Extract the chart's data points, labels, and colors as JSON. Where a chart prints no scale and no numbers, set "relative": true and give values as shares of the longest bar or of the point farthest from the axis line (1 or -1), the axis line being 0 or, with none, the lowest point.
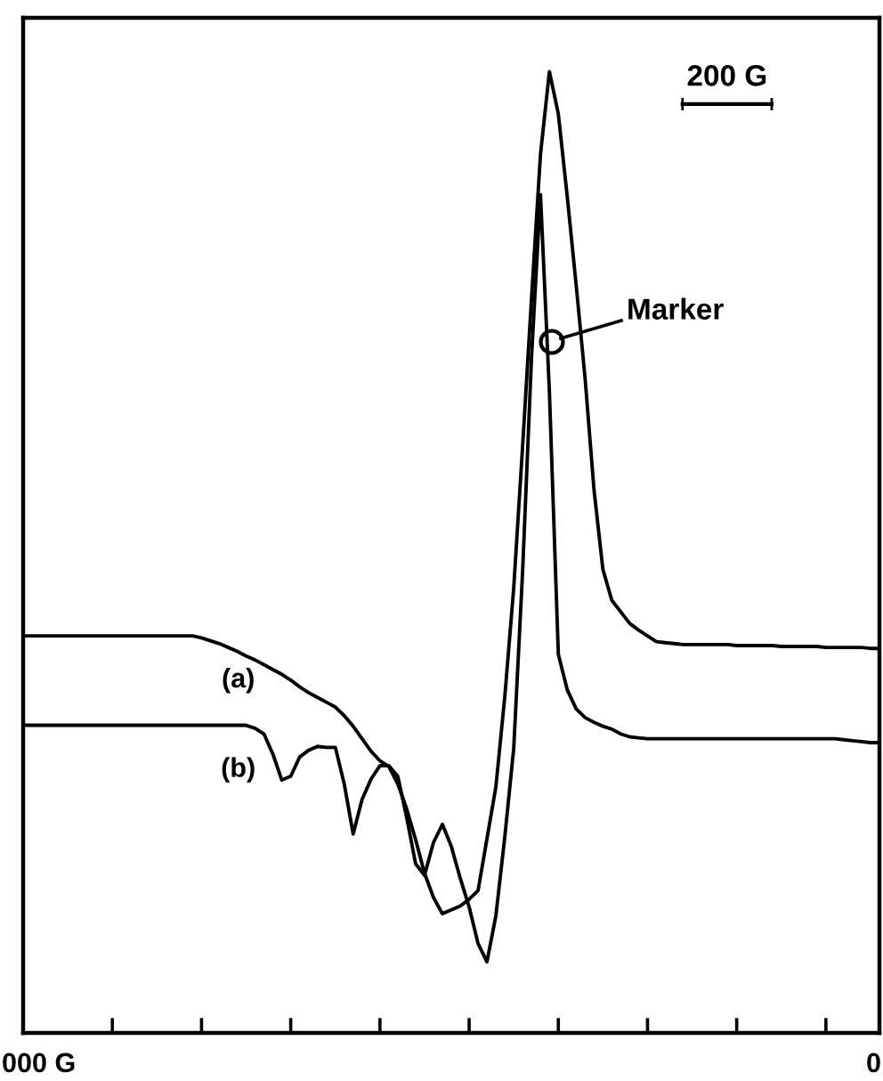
{
  "chart_data": {
    "type": "line",
    "relative": true,
    "grid": false,
    "legend": false,
    "marker": "none",
    "line_style": "solid",
    "categories": [
      null,
      null,
      null,
      null,
      null,
      null,
      null,
      null,
      null,
      null,
      null,
      null,
      null,
      null,
      null,
      null,
      null,
      null,
      null,
      null,
      null,
      null,
      null,
      null,
      null,
      null,
      null,
      null,
      null,
      null,
      null,
      null,
      null,
      null,
      null,
      null,
      null,
      null,
      null,
      null,
      null,
      null,
      null,
      null,
      null,
      null,
      null,
      null,
      null,
      null,
      null,
      null,
      null,
      null,
      null,
      null,
      null,
      null,
      null,
      null,
      null,
      null,
      null,
      null,
      null,
      null,
      null,
      null,
      null,
      null,
      null,
      null,
      null,
      null,
      null,
      null,
      null,
      null,
      null,
      null,
      null,
      null,
      null,
      null,
      null,
      null,
      null,
      null,
      null,
      null,
      null,
      null,
      null,
      null,
      null,
      null,
      null
    ],
    "series": [
      {
        "name": "(a)",
        "color": "#000000",
        "values": [
          0.413,
          0.413,
          0.413,
          0.413,
          0.413,
          0.413,
          0.413,
          0.413,
          0.413,
          0.413,
          0.413,
          0.413,
          0.413,
          0.413,
          0.413,
          0.413,
          0.413,
          0.413,
          0.413,
          0.413,
          0.411,
          0.408,
          0.405,
          0.401,
          0.397,
          0.392,
          0.388,
          0.383,
          0.378,
          0.373,
          0.367,
          0.36,
          0.354,
          0.349,
          0.344,
          0.339,
          0.33,
          0.319,
          0.306,
          0.293,
          0.283,
          0.277,
          0.259,
          0.233,
          0.201,
          0.166,
          0.141,
          0.124,
          0.128,
          0.132,
          0.139,
          0.148,
          0.202,
          0.256,
          0.35,
          0.463,
          0.611,
          0.765,
          0.914,
          1,
          0.956,
          0.87,
          0.778,
          0.681,
          0.565,
          0.482,
          0.45,
          0.438,
          0.426,
          0.419,
          0.413,
          0.407,
          0.406,
          0.405,
          0.404,
          0.404,
          0.404,
          0.404,
          0.404,
          0.404,
          0.403,
          0.403,
          0.403,
          0.403,
          0.403,
          0.402,
          0.402,
          0.402,
          0.402,
          0.402,
          0.401,
          0.401,
          0.401,
          0.401,
          0.401,
          0.4,
          0.4
        ]
      },
      {
        "name": "(b)",
        "color": "#000000",
        "values": [
          0.32,
          0.32,
          0.32,
          0.32,
          0.32,
          0.32,
          0.32,
          0.32,
          0.32,
          0.32,
          0.32,
          0.32,
          0.32,
          0.32,
          0.32,
          0.32,
          0.32,
          0.32,
          0.32,
          0.32,
          0.32,
          0.32,
          0.32,
          0.32,
          0.32,
          0.32,
          0.317,
          0.311,
          0.29,
          0.263,
          0.267,
          0.287,
          0.294,
          0.298,
          0.297,
          0.297,
          0.259,
          0.207,
          0.243,
          0.264,
          0.278,
          0.278,
          0.267,
          0.224,
          0.176,
          0.164,
          0.198,
          0.217,
          0.194,
          0.161,
          0.131,
          0.093,
          0.074,
          0.122,
          0.204,
          0.296,
          0.481,
          0.704,
          0.872,
          0.667,
          0.394,
          0.357,
          0.337,
          0.328,
          0.323,
          0.319,
          0.316,
          0.311,
          0.308,
          0.307,
          0.306,
          0.306,
          0.306,
          0.306,
          0.306,
          0.306,
          0.306,
          0.306,
          0.306,
          0.306,
          0.306,
          0.306,
          0.306,
          0.306,
          0.306,
          0.306,
          0.306,
          0.306,
          0.306,
          0.306,
          0.306,
          0.306,
          0.305,
          0.304,
          0.303,
          0.302,
          0.302
        ]
      }
    ],
    "annotations": [
      "Marker",
      "200 G",
      "000 G",
      "0"
    ]
  }
}
